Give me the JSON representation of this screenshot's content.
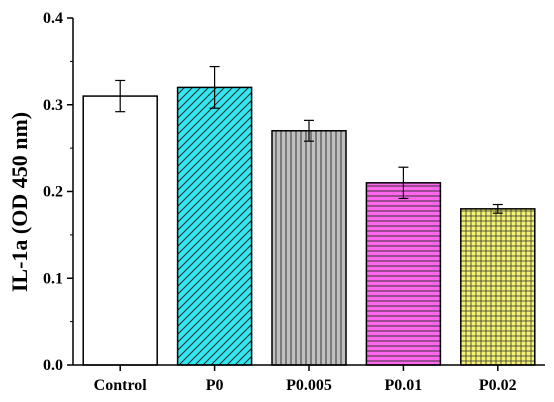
{
  "chart_data": {
    "type": "bar",
    "title": "",
    "xlabel": "",
    "ylabel": "IL-1a (OD 450 nm)",
    "ylim": [
      0,
      0.4
    ],
    "yticks": [
      "0.0",
      "0.1",
      "0.2",
      "0.3",
      "0.4"
    ],
    "categories": [
      "Control",
      "P0",
      "P0.005",
      "P0.01",
      "P0.02"
    ],
    "values": [
      0.31,
      0.32,
      0.27,
      0.21,
      0.18
    ],
    "errors": [
      0.018,
      0.024,
      0.012,
      0.018,
      0.005
    ],
    "fills": [
      "#ffffff",
      "#33e6f0",
      "#c0c0c0",
      "#ff66ee",
      "#f4f470"
    ],
    "patterns": [
      "none",
      "diagonal",
      "vertical",
      "horizontal",
      "grid"
    ],
    "grid": false,
    "legend": "none"
  }
}
